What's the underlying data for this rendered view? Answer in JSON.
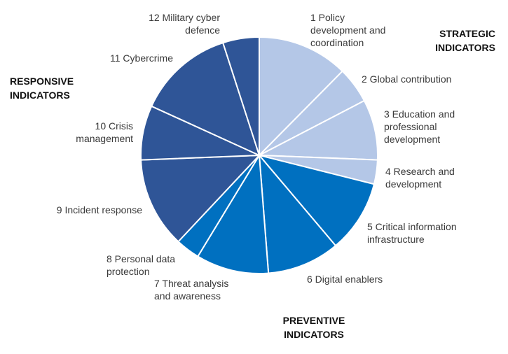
{
  "chart_data": {
    "type": "pie",
    "title": "",
    "start_angle_deg": 0,
    "direction": "clockwise",
    "slices": [
      {
        "label": "1 Policy development and coordination",
        "lines": [
          "1 Policy",
          "development and",
          "coordination"
        ],
        "value": 15,
        "group": "strategic"
      },
      {
        "label": "2 Global contribution",
        "lines": [
          "2 Global contribution"
        ],
        "value": 6,
        "group": "strategic"
      },
      {
        "label": "3 Education and professional development",
        "lines": [
          "3 Education and",
          "professional",
          "development"
        ],
        "value": 10,
        "group": "strategic"
      },
      {
        "label": "4 Research and development",
        "lines": [
          "4 Research and",
          "development"
        ],
        "value": 4,
        "group": "strategic"
      },
      {
        "label": "5 Critical information infrastructure",
        "lines": [
          "5 Critical information",
          "infrastructure"
        ],
        "value": 12,
        "group": "preventive"
      },
      {
        "label": "6 Digital enablers",
        "lines": [
          "6 Digital enablers"
        ],
        "value": 12,
        "group": "preventive"
      },
      {
        "label": "7 Threat analysis and awareness",
        "lines": [
          "7 Threat analysis",
          "and awareness"
        ],
        "value": 12,
        "group": "preventive"
      },
      {
        "label": "8 Personal data protection",
        "lines": [
          "8 Personal data",
          "protection"
        ],
        "value": 4,
        "group": "preventive"
      },
      {
        "label": "9 Incident response",
        "lines": [
          "9 Incident response"
        ],
        "value": 15,
        "group": "responsive"
      },
      {
        "label": "10 Crisis management",
        "lines": [
          "10 Crisis",
          "management"
        ],
        "value": 9,
        "group": "responsive"
      },
      {
        "label": "11 Cybercrime",
        "lines": [
          "11 Cybercrime"
        ],
        "value": 16,
        "group": "responsive"
      },
      {
        "label": "12 Military cyber defence",
        "lines": [
          "12 Military cyber",
          "defence"
        ],
        "value": 6,
        "group": "responsive"
      }
    ],
    "groups": [
      {
        "id": "strategic",
        "lines": [
          "STRATEGIC",
          "INDICATORS"
        ],
        "color": "#b4c7e7"
      },
      {
        "id": "preventive",
        "lines": [
          "PREVENTIVE",
          "INDICATORS"
        ],
        "color": "#0070c0"
      },
      {
        "id": "responsive",
        "lines": [
          "RESPONSIVE",
          "INDICATORS"
        ],
        "color": "#2f5597"
      }
    ],
    "slice_border_color": "#ffffff"
  }
}
